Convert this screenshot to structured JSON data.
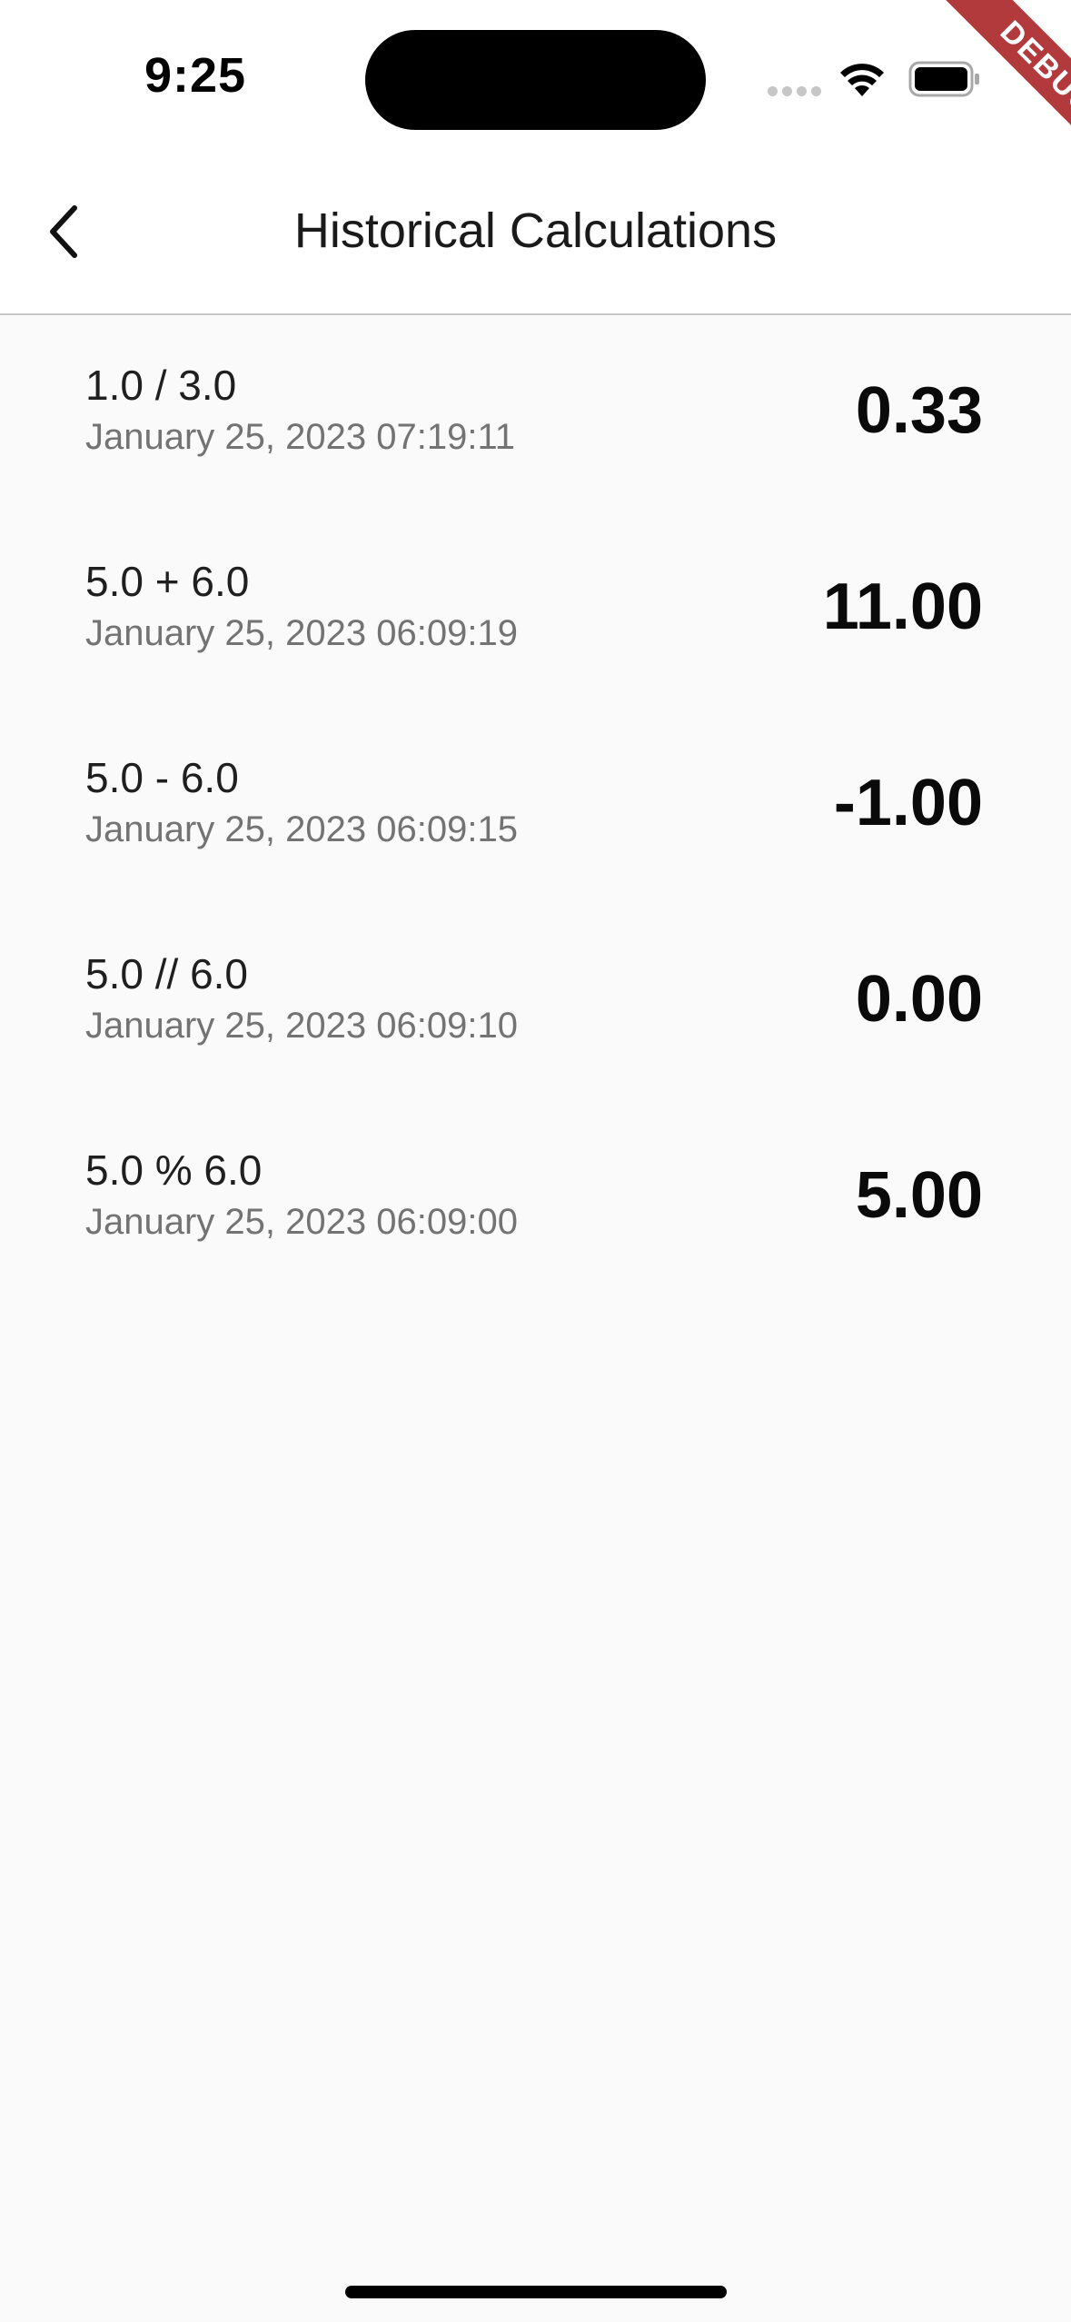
{
  "status_bar": {
    "time": "9:25"
  },
  "debug_banner": {
    "label": "DEBUG",
    "color": "#b23a3d"
  },
  "app_bar": {
    "back_icon": "chevron-left-icon",
    "title": "Historical Calculations"
  },
  "history": {
    "items": [
      {
        "expression": "1.0 / 3.0",
        "timestamp": "January 25, 2023 07:19:11",
        "result": "0.33"
      },
      {
        "expression": "5.0 + 6.0",
        "timestamp": "January 25, 2023 06:09:19",
        "result": "11.00"
      },
      {
        "expression": "5.0 - 6.0",
        "timestamp": "January 25, 2023 06:09:15",
        "result": "-1.00"
      },
      {
        "expression": "5.0 // 6.0",
        "timestamp": "January 25, 2023 06:09:10",
        "result": "0.00"
      },
      {
        "expression": "5.0 % 6.0",
        "timestamp": "January 25, 2023 06:09:00",
        "result": "5.00"
      }
    ]
  }
}
